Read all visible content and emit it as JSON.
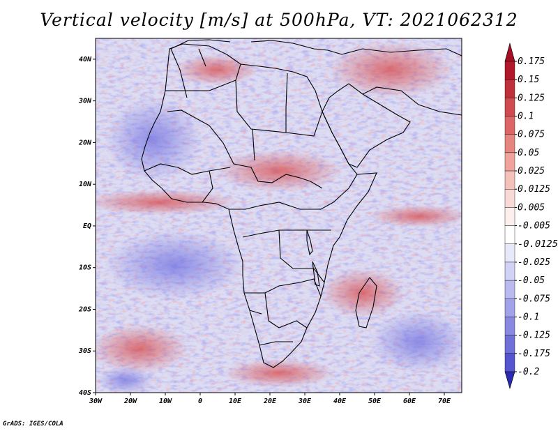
{
  "title": "Vertical velocity [m/s] at 500hPa, VT: 2021062312",
  "credit": "GrADS: IGES/COLA",
  "map": {
    "region": "Africa and Middle East",
    "lon_range": [
      -30,
      75
    ],
    "lat_range": [
      -40,
      45
    ],
    "lon_ticks": [
      "30W",
      "20W",
      "10W",
      "0",
      "10E",
      "20E",
      "30E",
      "40E",
      "50E",
      "60E",
      "70E"
    ],
    "lat_ticks": [
      "40N",
      "30N",
      "20N",
      "10N",
      "EQ",
      "10S",
      "20S",
      "30S",
      "40S"
    ]
  },
  "colorbar": {
    "levels": [
      {
        "label": "0.175",
        "color": "#b2182b"
      },
      {
        "label": "0.15",
        "color": "#c0303a"
      },
      {
        "label": "0.125",
        "color": "#d04a4f"
      },
      {
        "label": "0.1",
        "color": "#dc6665"
      },
      {
        "label": "0.075",
        "color": "#e6847f"
      },
      {
        "label": "0.05",
        "color": "#efa39c"
      },
      {
        "label": "0.025",
        "color": "#f5c1bb"
      },
      {
        "label": "0.0125",
        "color": "#f9d9d5"
      },
      {
        "label": "0.005",
        "color": "#fcefed"
      },
      {
        "label": "-0.005",
        "color": "#ffffff"
      },
      {
        "label": "-0.0125",
        "color": "#e8e8fb"
      },
      {
        "label": "-0.025",
        "color": "#d2d2f6"
      },
      {
        "label": "-0.05",
        "color": "#babaf1"
      },
      {
        "label": "-0.075",
        "color": "#a2a2ea"
      },
      {
        "label": "-0.1",
        "color": "#8989e2"
      },
      {
        "label": "-0.125",
        "color": "#7070d9"
      },
      {
        "label": "-0.175",
        "color": "#5555cf"
      },
      {
        "label": "-0.2",
        "color": "#3a3ac4"
      }
    ],
    "top_arrow_color": "#a50f22",
    "bottom_arrow_color": "#2b2bb0"
  }
}
